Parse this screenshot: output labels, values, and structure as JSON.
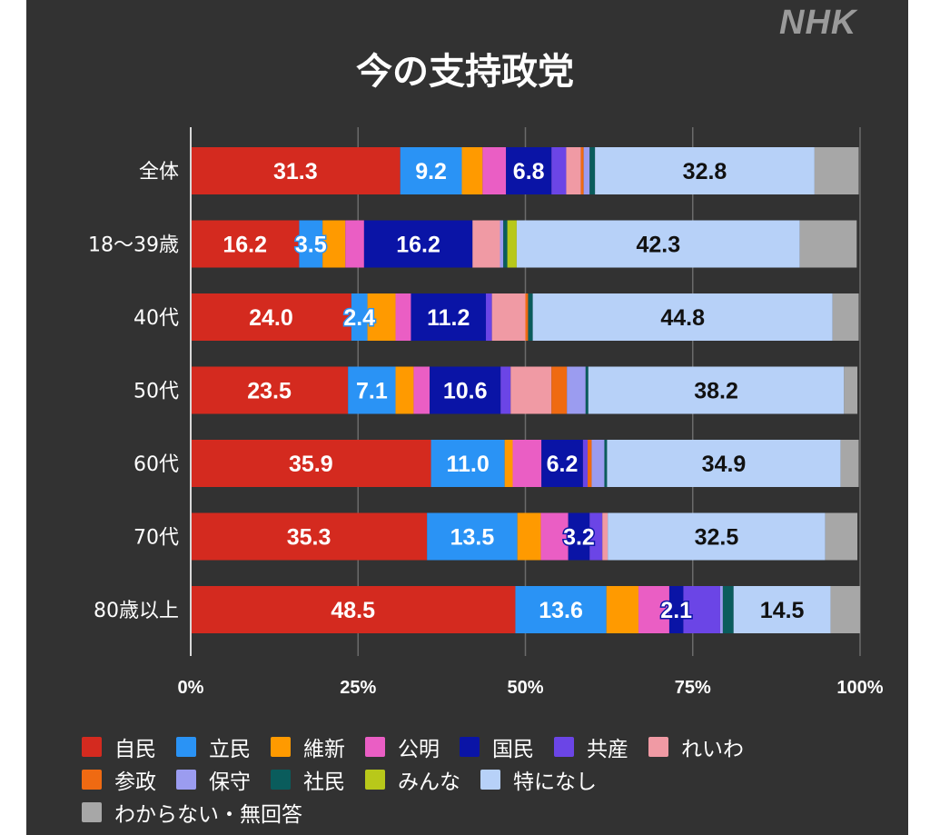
{
  "brand": "NHK",
  "chart_data": {
    "type": "bar",
    "orientation": "horizontal",
    "stacked": true,
    "title": "今の支持政党",
    "xlabel": "",
    "ylabel": "",
    "xlim": [
      0,
      100
    ],
    "x_ticks": [
      "0%",
      "25%",
      "50%",
      "75%",
      "100%"
    ],
    "x_tick_values": [
      0,
      25,
      50,
      75,
      100
    ],
    "grid": true,
    "legend_position": "bottom",
    "categories": [
      "全体",
      "18〜39歳",
      "40代",
      "50代",
      "60代",
      "70代",
      "80歳以上"
    ],
    "series": [
      {
        "name": "自民",
        "color": "#d42a1f",
        "label_color": "#ffffff",
        "values": [
          31.3,
          16.2,
          24.0,
          23.5,
          35.9,
          35.3,
          48.5
        ],
        "labels": [
          "31.3",
          "16.2",
          "24.0",
          "23.5",
          "35.9",
          "35.3",
          "48.5"
        ]
      },
      {
        "name": "立民",
        "color": "#2a93f5",
        "label_color": "#ffffff",
        "values": [
          9.2,
          3.5,
          2.4,
          7.1,
          11.0,
          13.5,
          13.6
        ],
        "labels": [
          "9.2",
          "3.5",
          "2.4",
          "7.1",
          "11.0",
          "13.5",
          "13.6"
        ]
      },
      {
        "name": "維新",
        "color": "#ff9a00",
        "label_color": "#ffffff",
        "values": [
          3.1,
          3.4,
          4.2,
          2.7,
          1.2,
          3.5,
          4.8
        ],
        "labels": [
          "",
          "",
          "",
          "",
          "",
          "",
          ""
        ]
      },
      {
        "name": "公明",
        "color": "#ea5ec4",
        "label_color": "#ffffff",
        "values": [
          3.5,
          2.8,
          2.3,
          2.4,
          4.3,
          4.1,
          4.6
        ],
        "labels": [
          "",
          "",
          "",
          "",
          "",
          "",
          ""
        ]
      },
      {
        "name": "国民",
        "color": "#0a14a6",
        "label_color": "#ffffff",
        "values": [
          6.8,
          16.2,
          11.2,
          10.6,
          6.2,
          3.2,
          2.1
        ],
        "labels": [
          "6.8",
          "16.2",
          "11.2",
          "10.6",
          "6.2",
          "3.2",
          "2.1"
        ]
      },
      {
        "name": "共産",
        "color": "#6b45e6",
        "label_color": "#ffffff",
        "values": [
          2.2,
          0.0,
          0.9,
          1.5,
          0.7,
          1.9,
          5.5
        ],
        "labels": [
          "",
          "",
          "",
          "",
          "",
          "",
          ""
        ]
      },
      {
        "name": "れいわ",
        "color": "#f09aa4",
        "label_color": "#ffffff",
        "values": [
          2.2,
          4.1,
          5.0,
          6.1,
          0.0,
          0.8,
          0.0
        ],
        "labels": [
          "",
          "",
          "",
          "",
          "",
          "",
          ""
        ]
      },
      {
        "name": "参政",
        "color": "#ef6a12",
        "label_color": "#ffffff",
        "values": [
          0.4,
          0.0,
          0.4,
          2.3,
          0.6,
          0.0,
          0.0
        ],
        "labels": [
          "",
          "",
          "",
          "",
          "",
          "",
          ""
        ]
      },
      {
        "name": "保守",
        "color": "#9b9cf0",
        "label_color": "#ffffff",
        "values": [
          0.9,
          0.5,
          0.0,
          2.8,
          1.9,
          0.0,
          0.4
        ],
        "labels": [
          "",
          "",
          "",
          "",
          "",
          "",
          ""
        ]
      },
      {
        "name": "社民",
        "color": "#0a5c5c",
        "label_color": "#ffffff",
        "values": [
          0.8,
          0.6,
          0.7,
          0.4,
          0.4,
          0.0,
          1.6
        ],
        "labels": [
          "",
          "",
          "",
          "",
          "",
          "",
          ""
        ]
      },
      {
        "name": "みんな",
        "color": "#b8c81a",
        "label_color": "#ffffff",
        "values": [
          0.0,
          1.4,
          0.0,
          0.0,
          0.0,
          0.0,
          0.0
        ],
        "labels": [
          "",
          "",
          "",
          "",
          "",
          "",
          ""
        ]
      },
      {
        "name": "特になし",
        "color": "#b7d1f8",
        "label_color": "#111111",
        "values": [
          32.8,
          42.3,
          44.8,
          38.2,
          34.9,
          32.5,
          14.5
        ],
        "labels": [
          "32.8",
          "42.3",
          "44.8",
          "38.2",
          "34.9",
          "32.5",
          "14.5"
        ]
      },
      {
        "name": "わからない・無回答",
        "color": "#a7a7a7",
        "label_color": "#111111",
        "values": [
          6.6,
          8.5,
          3.9,
          2.0,
          2.7,
          4.8,
          4.4
        ],
        "labels": [
          "",
          "",
          "",
          "",
          "",
          "",
          ""
        ]
      }
    ]
  },
  "legend": {
    "rows": [
      [
        0,
        1,
        2,
        3,
        4,
        5,
        6
      ],
      [
        7,
        8,
        9,
        10,
        11
      ],
      [
        12
      ]
    ]
  }
}
